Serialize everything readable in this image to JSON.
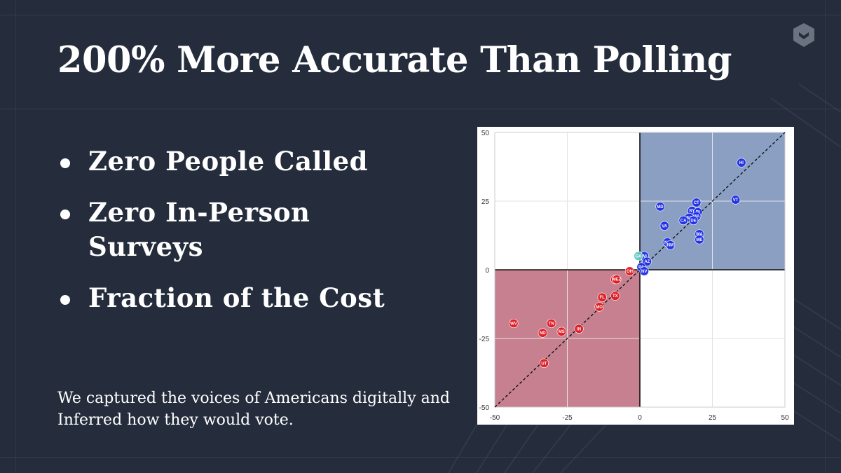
{
  "slide": {
    "title": "200% More Accurate Than Polling",
    "bullets": [
      "Zero People Called",
      "Zero In-Person Surveys",
      "Fraction of the Cost"
    ],
    "caption": "We captured the voices of Americans digitally and Inferred how they would vote.",
    "logo_icon": "shield-chevron-icon"
  },
  "colors": {
    "background": "#252d3d",
    "democrat_point": "#1f2ee6",
    "republican_point": "#e21b24",
    "toss_up_point": "#5fc8c0",
    "democrat_quadrant": "#8a9fc2",
    "republican_quadrant": "#c7808f"
  },
  "chart_data": {
    "type": "scatter",
    "title": "",
    "xlabel": "",
    "ylabel": "",
    "xlim": [
      -50,
      50
    ],
    "ylim": [
      -50,
      50
    ],
    "xticks": [
      -50,
      -25,
      0,
      25,
      50
    ],
    "yticks": [
      50,
      25,
      0,
      -25,
      -50
    ],
    "grid": true,
    "diagonal_reference_line": true,
    "shaded_quadrants": [
      "top-right",
      "bottom-left"
    ],
    "points": [
      {
        "label": "HI",
        "x": 35,
        "y": 39,
        "party": "D"
      },
      {
        "label": "VT",
        "x": 33,
        "y": 25.5,
        "party": "D"
      },
      {
        "label": "CT",
        "x": 19.5,
        "y": 24.5,
        "party": "D"
      },
      {
        "label": "MD",
        "x": 7,
        "y": 23,
        "party": "D"
      },
      {
        "label": "NY",
        "x": 18,
        "y": 21.5,
        "party": "D"
      },
      {
        "label": "RI",
        "x": 20,
        "y": 21,
        "party": "D"
      },
      {
        "label": "MA",
        "x": 19.5,
        "y": 19.5,
        "party": "D"
      },
      {
        "label": "NJ",
        "x": 17,
        "y": 19,
        "party": "D"
      },
      {
        "label": "DE",
        "x": 18.5,
        "y": 18,
        "party": "D"
      },
      {
        "label": "CA",
        "x": 15,
        "y": 18,
        "party": "D"
      },
      {
        "label": "VA",
        "x": 8.5,
        "y": 16,
        "party": "D"
      },
      {
        "label": "WA",
        "x": 20.5,
        "y": 13,
        "party": "D"
      },
      {
        "label": "ME",
        "x": 20.5,
        "y": 11,
        "party": "D"
      },
      {
        "label": "NH",
        "x": 9.5,
        "y": 10,
        "party": "D"
      },
      {
        "label": "NM",
        "x": 10.5,
        "y": 9,
        "party": "D"
      },
      {
        "label": "WI",
        "x": 1.5,
        "y": 5,
        "party": "D"
      },
      {
        "label": "AZ",
        "x": 2.5,
        "y": 3,
        "party": "D"
      },
      {
        "label": "PA",
        "x": 0.5,
        "y": 1,
        "party": "D"
      },
      {
        "label": "NV",
        "x": 1.5,
        "y": -0.5,
        "party": "D"
      },
      {
        "label": "GA",
        "x": -0.5,
        "y": 5,
        "party": "T"
      },
      {
        "label": "OH",
        "x": -3.5,
        "y": -0.5,
        "party": "R"
      },
      {
        "label": "NC",
        "x": -8.5,
        "y": -3.5,
        "party": "R"
      },
      {
        "label": "ME2",
        "x": -8,
        "y": -3.5,
        "party": "R"
      },
      {
        "label": "FL",
        "x": -13,
        "y": -10,
        "party": "R"
      },
      {
        "label": "TX",
        "x": -8.5,
        "y": -9.5,
        "party": "R"
      },
      {
        "label": "MO",
        "x": -14,
        "y": -13.5,
        "party": "R"
      },
      {
        "label": "WV",
        "x": -43.5,
        "y": -19.5,
        "party": "R"
      },
      {
        "label": "TN",
        "x": -30.5,
        "y": -19.5,
        "party": "R"
      },
      {
        "label": "IN",
        "x": -21,
        "y": -21.5,
        "party": "R"
      },
      {
        "label": "ND",
        "x": -33.5,
        "y": -23,
        "party": "R"
      },
      {
        "label": "MS",
        "x": -27,
        "y": -22.5,
        "party": "R"
      },
      {
        "label": "UT",
        "x": -33,
        "y": -34,
        "party": "R"
      }
    ]
  }
}
